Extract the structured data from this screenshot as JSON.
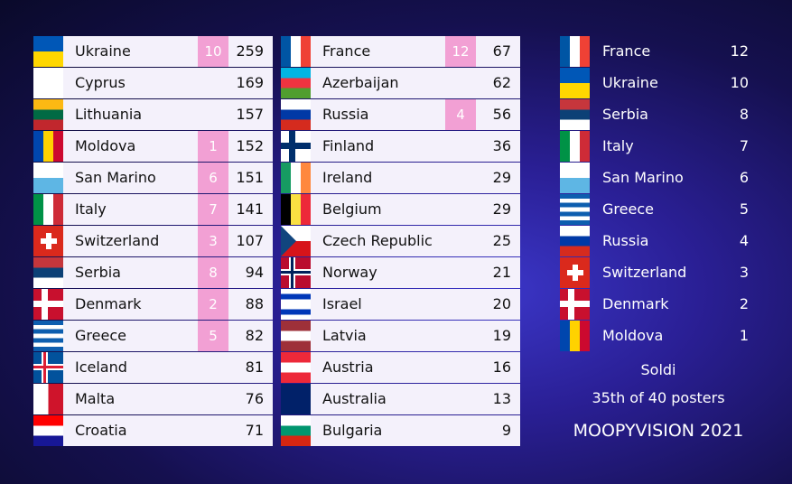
{
  "standings": [
    {
      "rows": [
        {
          "country": "Ukraine",
          "points": 10,
          "total": 259
        },
        {
          "country": "Cyprus",
          "total": 169
        },
        {
          "country": "Lithuania",
          "total": 157
        },
        {
          "country": "Moldova",
          "points": 1,
          "total": 152
        },
        {
          "country": "San Marino",
          "points": 6,
          "total": 151
        },
        {
          "country": "Italy",
          "points": 7,
          "total": 141
        },
        {
          "country": "Switzerland",
          "points": 3,
          "total": 107
        },
        {
          "country": "Serbia",
          "points": 8,
          "total": 94
        },
        {
          "country": "Denmark",
          "points": 2,
          "total": 88
        },
        {
          "country": "Greece",
          "points": 5,
          "total": 82
        },
        {
          "country": "Iceland",
          "total": 81
        },
        {
          "country": "Malta",
          "total": 76
        },
        {
          "country": "Croatia",
          "total": 71
        }
      ]
    },
    {
      "rows": [
        {
          "country": "France",
          "points": 12,
          "total": 67
        },
        {
          "country": "Azerbaijan",
          "total": 62
        },
        {
          "country": "Russia",
          "points": 4,
          "total": 56
        },
        {
          "country": "Finland",
          "total": 36
        },
        {
          "country": "Ireland",
          "total": 29
        },
        {
          "country": "Belgium",
          "total": 29
        },
        {
          "country": "Czech Republic",
          "total": 25
        },
        {
          "country": "Norway",
          "total": 21
        },
        {
          "country": "Israel",
          "total": 20
        },
        {
          "country": "Latvia",
          "total": 19
        },
        {
          "country": "Austria",
          "total": 16
        },
        {
          "country": "Australia",
          "total": 13
        },
        {
          "country": "Bulgaria",
          "total": 9
        }
      ]
    }
  ],
  "awarded": [
    {
      "country": "France",
      "points": 12
    },
    {
      "country": "Ukraine",
      "points": 10
    },
    {
      "country": "Serbia",
      "points": 8
    },
    {
      "country": "Italy",
      "points": 7
    },
    {
      "country": "San Marino",
      "points": 6
    },
    {
      "country": "Greece",
      "points": 5
    },
    {
      "country": "Russia",
      "points": 4
    },
    {
      "country": "Switzerland",
      "points": 3
    },
    {
      "country": "Denmark",
      "points": 2
    },
    {
      "country": "Moldova",
      "points": 1
    }
  ],
  "footer": {
    "performer": "Soldi",
    "rank": "35th of 40 posters",
    "show": "MOOPYVISION 2021"
  }
}
